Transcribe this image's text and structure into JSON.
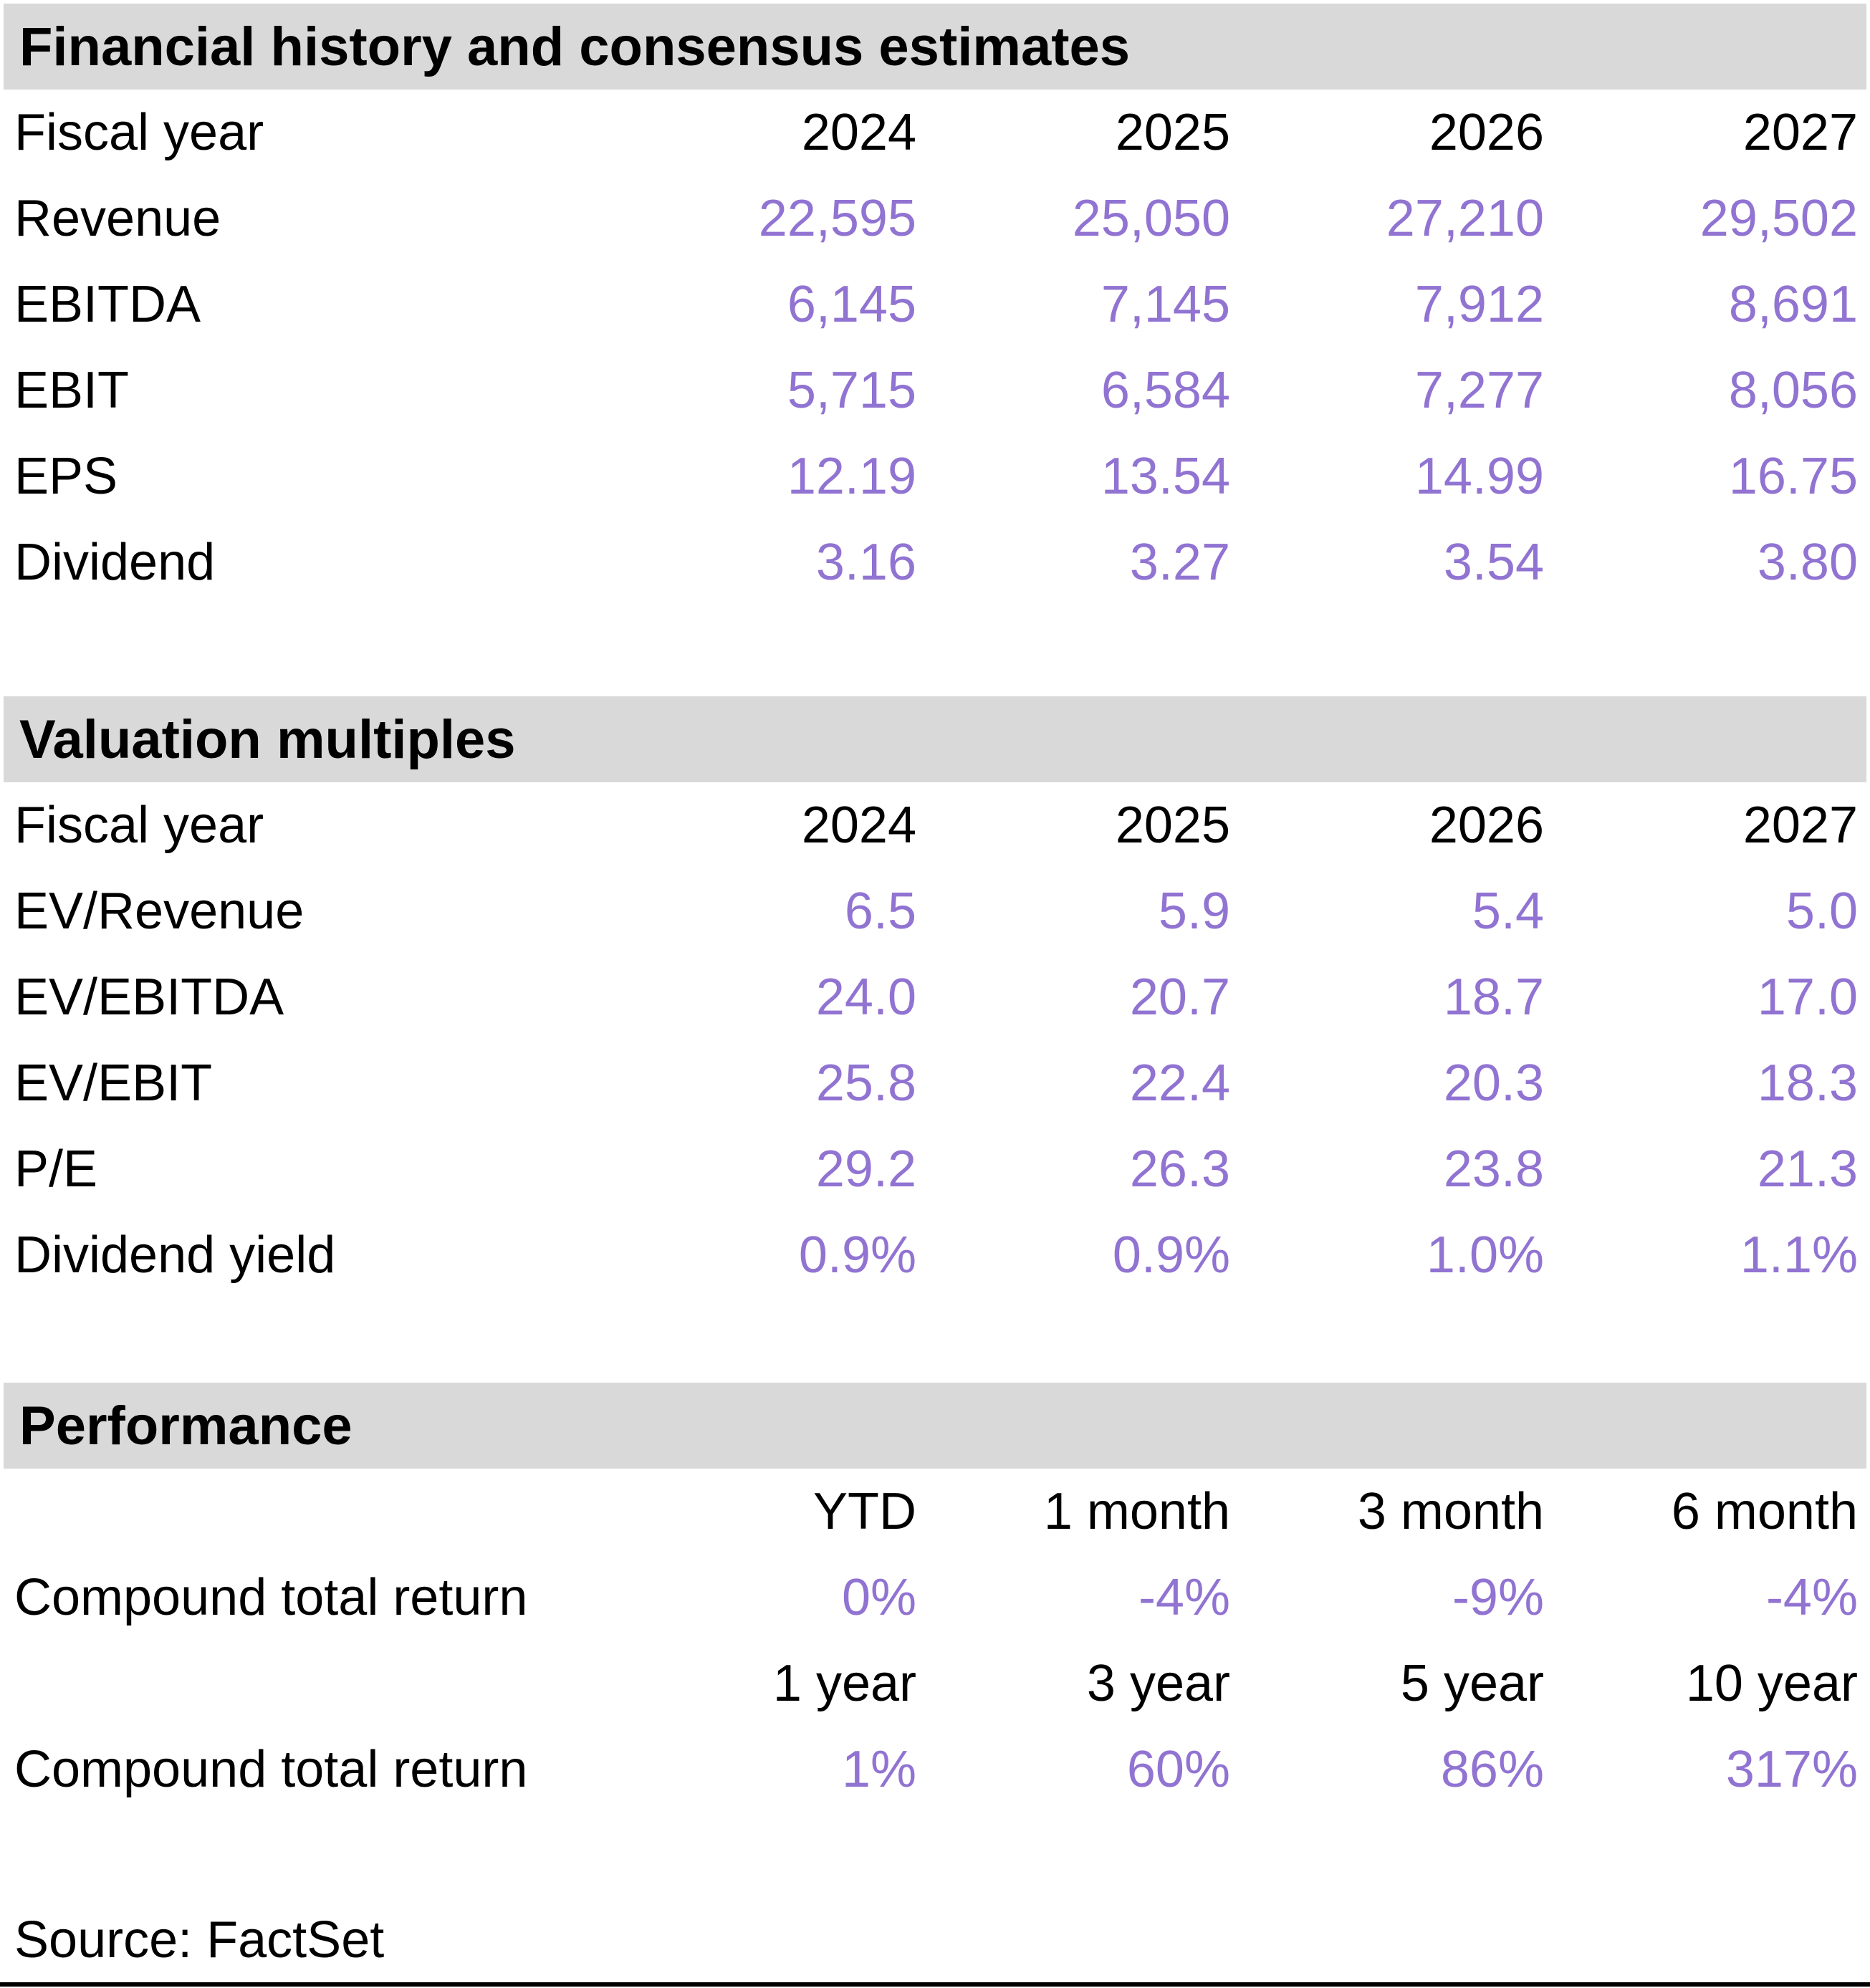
{
  "colors": {
    "accent_purple": "#9173D2",
    "band_gray": "#D9D9D9",
    "text_black": "#000000"
  },
  "sections": [
    {
      "title": "Financial history and consensus estimates",
      "header": {
        "label": "Fiscal year",
        "cols": [
          "2024",
          "2025",
          "2026",
          "2027"
        ]
      },
      "rows": [
        {
          "label": "Revenue",
          "values": [
            "22,595",
            "25,050",
            "27,210",
            "29,502"
          ]
        },
        {
          "label": "EBITDA",
          "values": [
            "6,145",
            "7,145",
            "7,912",
            "8,691"
          ]
        },
        {
          "label": "EBIT",
          "values": [
            "5,715",
            "6,584",
            "7,277",
            "8,056"
          ]
        },
        {
          "label": "EPS",
          "values": [
            "12.19",
            "13.54",
            "14.99",
            "16.75"
          ]
        },
        {
          "label": "Dividend",
          "values": [
            "3.16",
            "3.27",
            "3.54",
            "3.80"
          ]
        }
      ]
    },
    {
      "title": "Valuation multiples",
      "header": {
        "label": "Fiscal year",
        "cols": [
          "2024",
          "2025",
          "2026",
          "2027"
        ]
      },
      "rows": [
        {
          "label": "EV/Revenue",
          "values": [
            "6.5",
            "5.9",
            "5.4",
            "5.0"
          ]
        },
        {
          "label": "EV/EBITDA",
          "values": [
            "24.0",
            "20.7",
            "18.7",
            "17.0"
          ]
        },
        {
          "label": "EV/EBIT",
          "values": [
            "25.8",
            "22.4",
            "20.3",
            "18.3"
          ]
        },
        {
          "label": "P/E",
          "values": [
            "29.2",
            "26.3",
            "23.8",
            "21.3"
          ]
        },
        {
          "label": "Dividend yield",
          "values": [
            "0.9%",
            "0.9%",
            "1.0%",
            "1.1%"
          ]
        }
      ]
    },
    {
      "title": "Performance",
      "groups": [
        {
          "header": [
            "YTD",
            "1 month",
            "3 month",
            "6 month"
          ],
          "row": {
            "label": "Compound total return",
            "values": [
              "0%",
              "-4%",
              "-9%",
              "-4%"
            ]
          }
        },
        {
          "header": [
            "1 year",
            "3 year",
            "5 year",
            "10 year"
          ],
          "row": {
            "label": "Compound total return",
            "values": [
              "1%",
              "60%",
              "86%",
              "317%"
            ]
          }
        }
      ]
    }
  ],
  "source_label": "Source: FactSet"
}
